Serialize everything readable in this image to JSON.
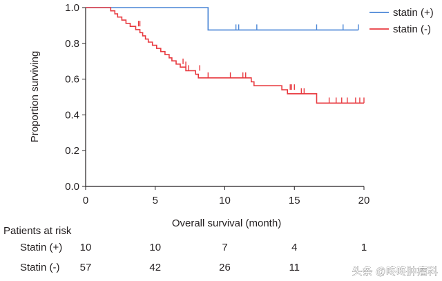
{
  "chart_data": {
    "type": "line",
    "subtype": "kaplan-meier",
    "title": "",
    "xlabel": "Overall survival (month)",
    "ylabel": "Proportion surviving",
    "xlim": [
      0,
      20
    ],
    "ylim": [
      0,
      1.0
    ],
    "xticks": [
      0,
      5,
      10,
      15,
      20
    ],
    "yticks": [
      0.0,
      0.2,
      0.4,
      0.6,
      0.8,
      1.0
    ],
    "xtick_labels": [
      "0",
      "5",
      "10",
      "15",
      "20"
    ],
    "ytick_labels": [
      "0.0",
      "0.2",
      "0.4",
      "0.6",
      "0.8",
      "1.0"
    ],
    "legend_position": "top-right",
    "series": [
      {
        "name": "statin (+)",
        "color": "#4a86d6",
        "steps": [
          [
            0,
            1.0
          ],
          [
            8.8,
            1.0
          ],
          [
            8.8,
            0.875
          ],
          [
            19.6,
            0.875
          ]
        ],
        "censored": [
          [
            10.8,
            0.875
          ],
          [
            11.0,
            0.875
          ],
          [
            12.3,
            0.875
          ],
          [
            16.6,
            0.875
          ],
          [
            18.5,
            0.875
          ],
          [
            19.6,
            0.875
          ]
        ]
      },
      {
        "name": "statin (-)",
        "color": "#e8393f",
        "steps": [
          [
            0,
            1.0
          ],
          [
            1.8,
            1.0
          ],
          [
            1.8,
            0.982
          ],
          [
            2.1,
            0.982
          ],
          [
            2.1,
            0.965
          ],
          [
            2.3,
            0.965
          ],
          [
            2.3,
            0.947
          ],
          [
            2.6,
            0.947
          ],
          [
            2.6,
            0.93
          ],
          [
            2.9,
            0.93
          ],
          [
            2.9,
            0.912
          ],
          [
            3.2,
            0.912
          ],
          [
            3.2,
            0.895
          ],
          [
            3.6,
            0.895
          ],
          [
            3.6,
            0.877
          ],
          [
            3.9,
            0.877
          ],
          [
            3.9,
            0.86
          ],
          [
            4.1,
            0.86
          ],
          [
            4.1,
            0.842
          ],
          [
            4.3,
            0.842
          ],
          [
            4.3,
            0.824
          ],
          [
            4.5,
            0.824
          ],
          [
            4.5,
            0.807
          ],
          [
            4.8,
            0.807
          ],
          [
            4.8,
            0.789
          ],
          [
            5.1,
            0.789
          ],
          [
            5.1,
            0.772
          ],
          [
            5.4,
            0.772
          ],
          [
            5.4,
            0.754
          ],
          [
            5.7,
            0.754
          ],
          [
            5.7,
            0.737
          ],
          [
            6.0,
            0.737
          ],
          [
            6.0,
            0.719
          ],
          [
            6.2,
            0.719
          ],
          [
            6.2,
            0.702
          ],
          [
            6.5,
            0.702
          ],
          [
            6.5,
            0.684
          ],
          [
            6.8,
            0.684
          ],
          [
            6.8,
            0.667
          ],
          [
            7.2,
            0.667
          ],
          [
            7.2,
            0.647
          ],
          [
            7.9,
            0.647
          ],
          [
            7.9,
            0.627
          ],
          [
            8.1,
            0.627
          ],
          [
            8.1,
            0.607
          ],
          [
            11.9,
            0.607
          ],
          [
            11.9,
            0.585
          ],
          [
            12.1,
            0.585
          ],
          [
            12.1,
            0.563
          ],
          [
            14.1,
            0.563
          ],
          [
            14.1,
            0.54
          ],
          [
            14.5,
            0.54
          ],
          [
            14.5,
            0.518
          ],
          [
            16.6,
            0.518
          ],
          [
            16.6,
            0.466
          ],
          [
            20.0,
            0.466
          ]
        ],
        "censored": [
          [
            3.8,
            0.895
          ],
          [
            3.9,
            0.895
          ],
          [
            7.0,
            0.684
          ],
          [
            7.2,
            0.667
          ],
          [
            7.4,
            0.647
          ],
          [
            8.2,
            0.647
          ],
          [
            8.8,
            0.607
          ],
          [
            10.4,
            0.607
          ],
          [
            11.3,
            0.607
          ],
          [
            11.5,
            0.607
          ],
          [
            14.7,
            0.54
          ],
          [
            14.8,
            0.54
          ],
          [
            15.0,
            0.54
          ],
          [
            15.5,
            0.518
          ],
          [
            15.7,
            0.518
          ],
          [
            17.5,
            0.466
          ],
          [
            18.0,
            0.466
          ],
          [
            18.4,
            0.466
          ],
          [
            18.8,
            0.466
          ],
          [
            19.4,
            0.466
          ],
          [
            19.7,
            0.466
          ],
          [
            20.0,
            0.466
          ]
        ]
      }
    ],
    "risk_table": {
      "title": "Patients at risk",
      "times": [
        0,
        5,
        10,
        15,
        20
      ],
      "rows": [
        {
          "label": "Statin (+)",
          "counts": [
            "10",
            "10",
            "7",
            "4",
            "1"
          ]
        },
        {
          "label": "Statin (-)",
          "counts": [
            "57",
            "42",
            "26",
            "11",
            ""
          ]
        }
      ]
    }
  },
  "watermark": "头条 @咚咚肿瘤科"
}
